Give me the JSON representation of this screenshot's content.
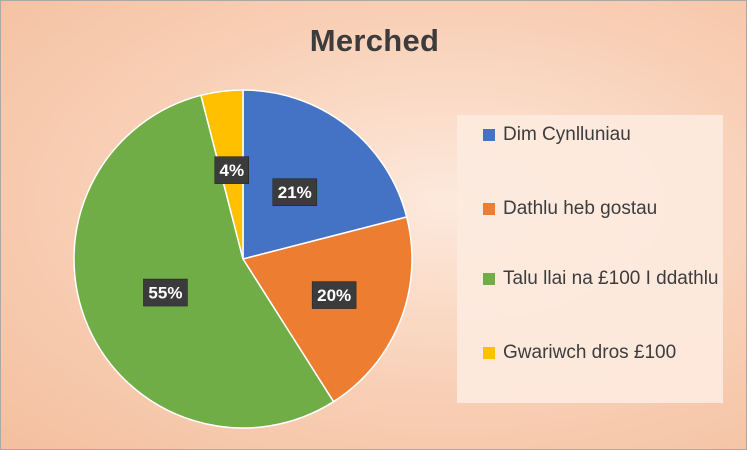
{
  "chart_data": {
    "type": "pie",
    "title": "Merched",
    "categories": [
      "Dim Cynlluniau",
      "Dathlu heb gostau",
      "Talu llai na £100 I ddathlu",
      "Gwariwch dros £100"
    ],
    "values": [
      21,
      20,
      55,
      4
    ],
    "data_labels": [
      "21%",
      "20%",
      "55%",
      "4%"
    ],
    "colors": [
      "#4472c4",
      "#ed7d31",
      "#70ad47",
      "#ffc000"
    ],
    "legend_placement": "right",
    "start_angle_deg": 0,
    "direction": "clockwise"
  }
}
